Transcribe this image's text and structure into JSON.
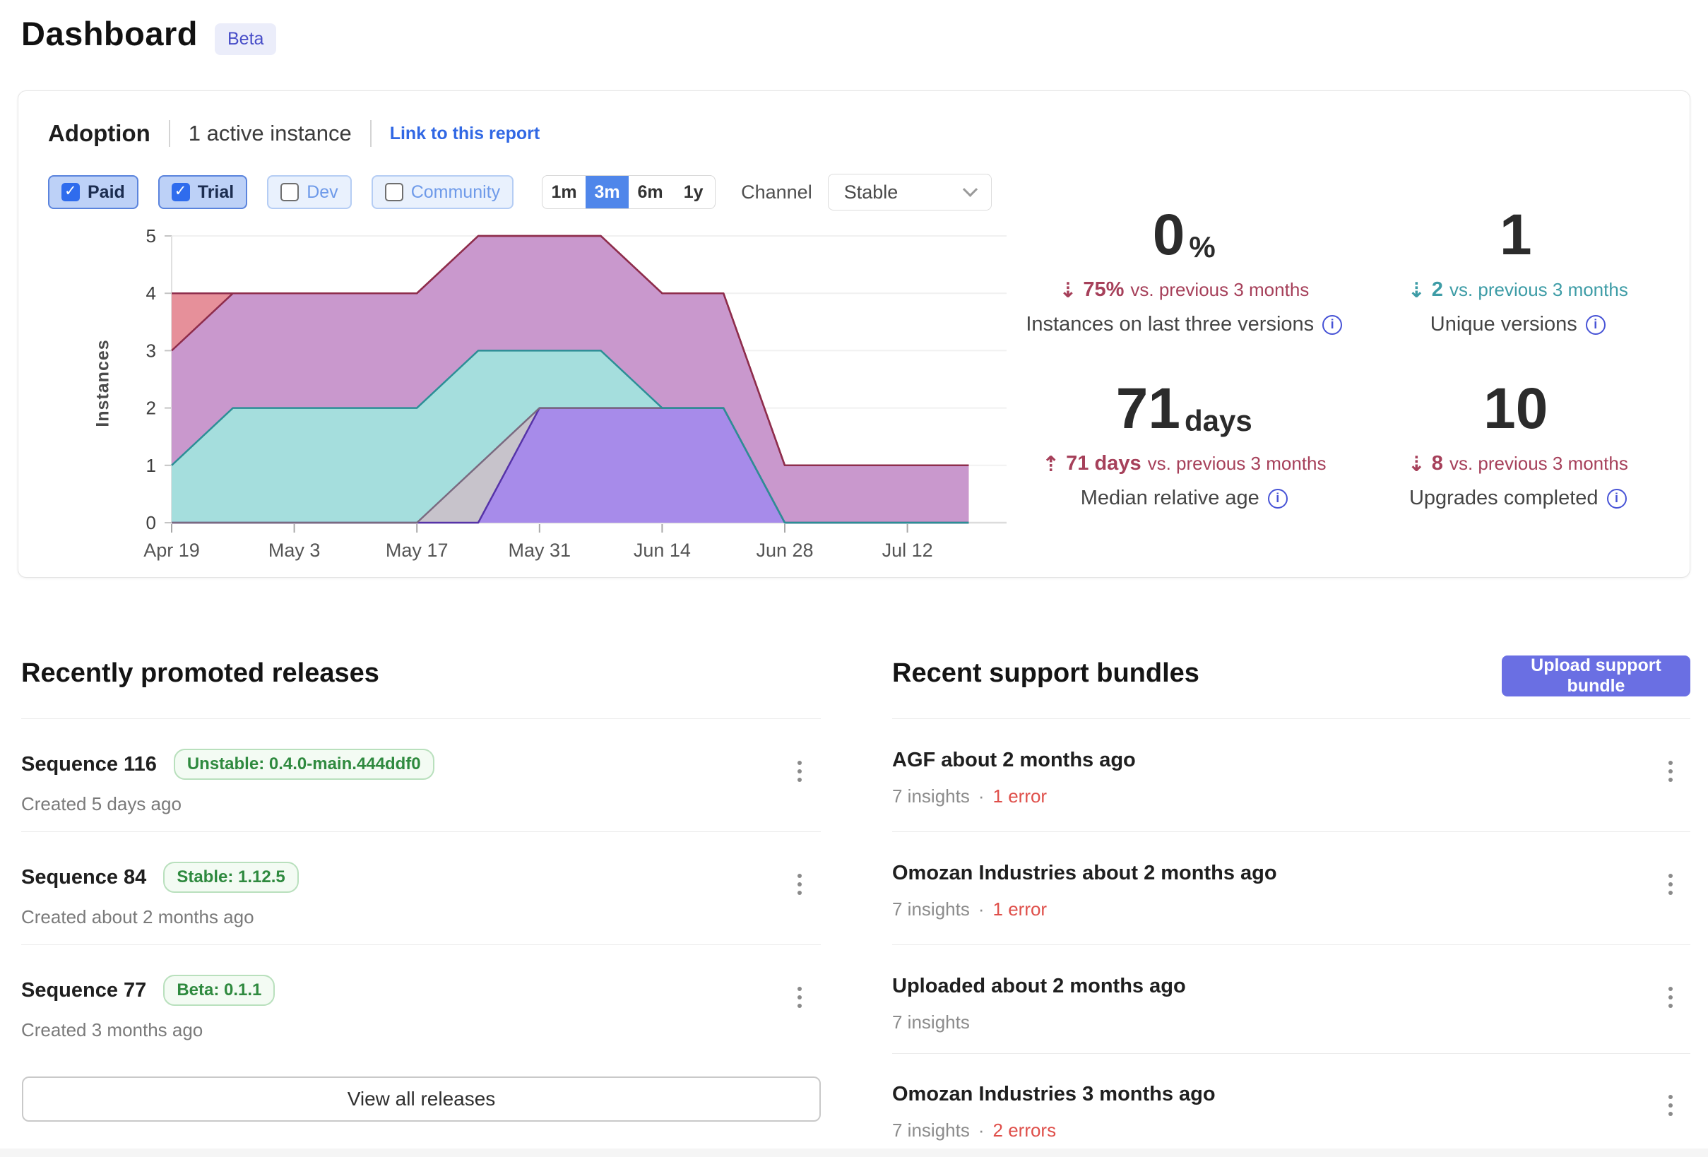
{
  "page": {
    "title": "Dashboard",
    "beta_badge": "Beta"
  },
  "adoption": {
    "title": "Adoption",
    "active_instances": "1 active instance",
    "report_link": "Link to this report",
    "filters": [
      {
        "label": "Paid",
        "checked": true
      },
      {
        "label": "Trial",
        "checked": true
      },
      {
        "label": "Dev",
        "checked": false
      },
      {
        "label": "Community",
        "checked": false
      }
    ],
    "ranges": [
      {
        "label": "1m",
        "selected": false
      },
      {
        "label": "3m",
        "selected": true
      },
      {
        "label": "6m",
        "selected": false
      },
      {
        "label": "1y",
        "selected": false
      }
    ],
    "channel_label": "Channel",
    "channel_value": "Stable",
    "stats": [
      {
        "value": "0",
        "unit": "%",
        "arrow": "⇣",
        "delta_value": "75%",
        "delta_suffix": "vs. previous 3 months",
        "tone": "red",
        "label": "Instances on last three versions"
      },
      {
        "value": "1",
        "unit": "",
        "arrow": "⇣",
        "delta_value": "2",
        "delta_suffix": "vs. previous 3 months",
        "tone": "teal",
        "label": "Unique versions"
      },
      {
        "value": "71",
        "unit": "days",
        "arrow": "⇡",
        "delta_value": "71 days",
        "delta_suffix": "vs. previous 3 months",
        "tone": "red",
        "label": "Median relative age"
      },
      {
        "value": "10",
        "unit": "",
        "arrow": "⇣",
        "delta_value": "8",
        "delta_suffix": "vs. previous 3 months",
        "tone": "red",
        "label": "Upgrades completed"
      }
    ],
    "chart_data": {
      "type": "area",
      "stacked": true,
      "title": "",
      "xlabel": "",
      "ylabel": "Instances",
      "ylim": [
        0,
        5
      ],
      "yticks": [
        0,
        1,
        2,
        3,
        4,
        5
      ],
      "grid": true,
      "legend": "none",
      "x": [
        "Apr 19",
        "Apr 26",
        "May 3",
        "May 10",
        "May 17",
        "May 24",
        "May 31",
        "Jun 7",
        "Jun 14",
        "Jun 21",
        "Jun 28",
        "Jul 5",
        "Jul 12",
        "Jul 19"
      ],
      "x_tick_labels": [
        "Apr 19",
        "May 3",
        "May 17",
        "May 31",
        "Jun 14",
        "Jun 28",
        "Jul 12"
      ],
      "series": [
        {
          "name": "violet-version-band",
          "fill": "#a78bea",
          "stroke": "#5633a8",
          "values": [
            0,
            0,
            0,
            0,
            0,
            0,
            2,
            2,
            2,
            2,
            0,
            0,
            0,
            0
          ]
        },
        {
          "name": "gray-version-band",
          "fill": "#c7c3cb",
          "stroke": "#7a6a80",
          "values": [
            0,
            0,
            0,
            0,
            0,
            1,
            0,
            0,
            0,
            0,
            0,
            0,
            0,
            0
          ]
        },
        {
          "name": "teal-version-band",
          "fill": "#a5dedd",
          "stroke": "#2c8f96",
          "values": [
            1,
            2,
            2,
            2,
            2,
            2,
            1,
            1,
            0,
            0,
            0,
            0,
            0,
            0
          ]
        },
        {
          "name": "orchid-version-band",
          "fill": "#c998cd",
          "stroke": "#8e2d4c",
          "values": [
            2,
            2,
            2,
            2,
            2,
            2,
            2,
            2,
            2,
            2,
            1,
            1,
            1,
            1
          ]
        },
        {
          "name": "salmon-version-band",
          "fill": "#e6909a",
          "stroke": "#8e2d4c",
          "values": [
            1,
            0,
            0,
            0,
            0,
            0,
            0,
            0,
            0,
            0,
            0,
            0,
            0,
            0
          ]
        }
      ],
      "stacked_totals": [
        4,
        4,
        4,
        4,
        4,
        5,
        5,
        5,
        4,
        4,
        1,
        1,
        1,
        1
      ]
    }
  },
  "releases": {
    "heading": "Recently promoted releases",
    "items": [
      {
        "title": "Sequence 116",
        "badge": "Unstable: 0.4.0-main.444ddf0",
        "created": "Created 5 days ago"
      },
      {
        "title": "Sequence 84",
        "badge": "Stable: 1.12.5",
        "created": "Created about 2 months ago"
      },
      {
        "title": "Sequence 77",
        "badge": "Beta: 0.1.1",
        "created": "Created 3 months ago"
      }
    ],
    "view_all": "View all releases"
  },
  "bundles": {
    "heading": "Recent support bundles",
    "upload_button": "Upload support bundle",
    "separator": "·",
    "items": [
      {
        "title": "AGF about 2 months ago",
        "insights": "7 insights",
        "errors": "1 error"
      },
      {
        "title": "Omozan Industries about 2 months ago",
        "insights": "7 insights",
        "errors": "1 error"
      },
      {
        "title": "Uploaded about 2 months ago",
        "insights": "7 insights",
        "errors": ""
      },
      {
        "title": "Omozan Industries 3 months ago",
        "insights": "7 insights",
        "errors": "2 errors"
      }
    ]
  }
}
